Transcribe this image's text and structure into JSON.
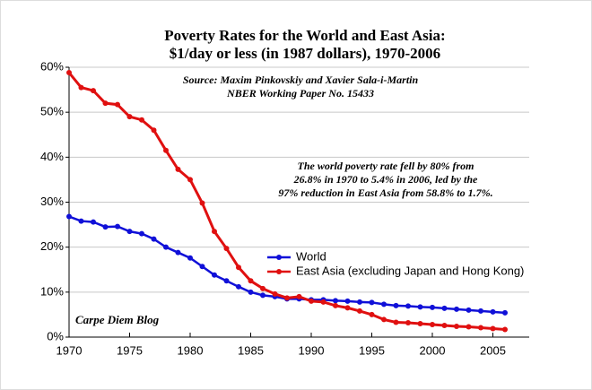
{
  "chart_data": {
    "type": "line",
    "title": [
      "Poverty Rates for the World and East Asia:",
      "$1/day or less  (in 1987 dollars), 1970-2006"
    ],
    "subtitle": [
      "Source: Maxim Pinkovskiy and Xavier Sala-i-Martin",
      "NBER Working Paper No. 15433"
    ],
    "annotation": [
      "The world poverty rate fell by 80% from",
      "26.8% in 1970 to 5.4% in 2006, led by the",
      "97% reduction in East Asia from 58.8% to 1.7%."
    ],
    "credit": "Carpe Diem Blog",
    "x": [
      1970,
      1971,
      1972,
      1973,
      1974,
      1975,
      1976,
      1977,
      1978,
      1979,
      1980,
      1981,
      1982,
      1983,
      1984,
      1985,
      1986,
      1987,
      1988,
      1989,
      1990,
      1991,
      1992,
      1993,
      1994,
      1995,
      1996,
      1997,
      1998,
      1999,
      2000,
      2001,
      2002,
      2003,
      2004,
      2005,
      2006
    ],
    "series": [
      {
        "name": "World",
        "color": "#1010d8",
        "values": [
          26.8,
          25.8,
          25.6,
          24.5,
          24.6,
          23.5,
          23.0,
          21.8,
          20.0,
          18.8,
          17.6,
          15.7,
          13.8,
          12.5,
          11.2,
          10.0,
          9.3,
          9.0,
          8.5,
          8.5,
          8.3,
          8.3,
          8.1,
          8.0,
          7.8,
          7.7,
          7.3,
          7.0,
          6.9,
          6.7,
          6.6,
          6.4,
          6.2,
          6.0,
          5.8,
          5.6,
          5.4
        ]
      },
      {
        "name": "East Asia (excluding Japan and Hong Kong)",
        "color": "#e01010",
        "values": [
          58.8,
          55.5,
          54.8,
          52.0,
          51.7,
          49.0,
          48.3,
          46.0,
          41.5,
          37.3,
          35.0,
          29.8,
          23.5,
          19.7,
          15.5,
          12.5,
          10.8,
          9.6,
          8.7,
          9.0,
          8.0,
          7.8,
          7.0,
          6.5,
          5.8,
          5.0,
          3.9,
          3.3,
          3.2,
          3.0,
          2.8,
          2.6,
          2.4,
          2.3,
          2.1,
          1.9,
          1.7
        ]
      }
    ],
    "xlim": [
      1970,
      2008
    ],
    "xticks": [
      1970,
      1975,
      1980,
      1985,
      1990,
      1995,
      2000,
      2005
    ],
    "ylim": [
      0,
      60
    ],
    "yticks": [
      {
        "value": 0,
        "label": "0%"
      },
      {
        "value": 10,
        "label": "10%"
      },
      {
        "value": 20,
        "label": "20%"
      },
      {
        "value": 30,
        "label": "30%"
      },
      {
        "value": 40,
        "label": "40%"
      },
      {
        "value": 50,
        "label": "50%"
      },
      {
        "value": 60,
        "label": "60%"
      }
    ],
    "grid": true,
    "legend": "center"
  }
}
